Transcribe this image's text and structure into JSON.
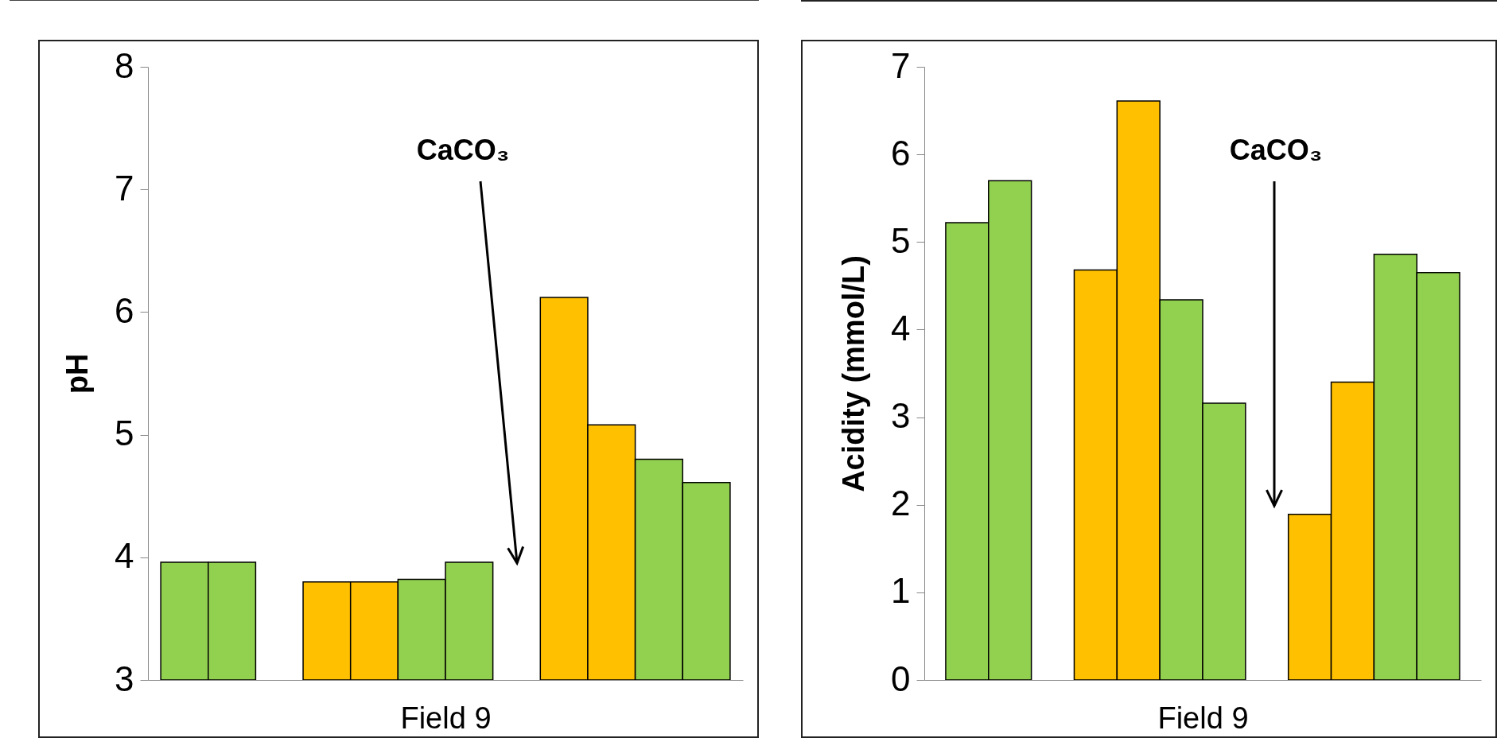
{
  "chart_data": [
    {
      "type": "bar",
      "ylabel": "pH",
      "xlabel": "Field 9",
      "categories": [
        null,
        null,
        null,
        null,
        null,
        null,
        null,
        null,
        null,
        null,
        null,
        null
      ],
      "values": [
        3.96,
        3.96,
        null,
        3.8,
        3.8,
        3.82,
        3.96,
        null,
        6.12,
        5.08,
        4.8,
        4.61
      ],
      "colors": [
        "#92d050",
        "#92d050",
        null,
        "#ffc000",
        "#ffc000",
        "#92d050",
        "#92d050",
        null,
        "#ffc000",
        "#ffc000",
        "#92d050",
        "#92d050"
      ],
      "ylim": [
        3,
        8
      ],
      "yticks": [
        3,
        4,
        5,
        6,
        7,
        8
      ],
      "grid": false,
      "tick_labels": "y",
      "annotations": [
        "CaCO₃"
      ]
    },
    {
      "type": "bar",
      "ylabel": "Acidity (mmol/L)",
      "xlabel": "Field 9",
      "categories": [
        null,
        null,
        null,
        null,
        null,
        null,
        null,
        null,
        null,
        null,
        null,
        null
      ],
      "values": [
        5.22,
        5.7,
        null,
        4.68,
        6.61,
        4.34,
        3.16,
        null,
        1.89,
        3.4,
        4.86,
        4.65
      ],
      "colors": [
        "#92d050",
        "#92d050",
        null,
        "#ffc000",
        "#ffc000",
        "#92d050",
        "#92d050",
        null,
        "#ffc000",
        "#ffc000",
        "#92d050",
        "#92d050"
      ],
      "ylim": [
        0,
        7
      ],
      "yticks": [
        0,
        1,
        2,
        3,
        4,
        5,
        6,
        7
      ],
      "grid": false,
      "tick_labels": "y",
      "annotations": [
        "CaCO₃"
      ]
    }
  ]
}
